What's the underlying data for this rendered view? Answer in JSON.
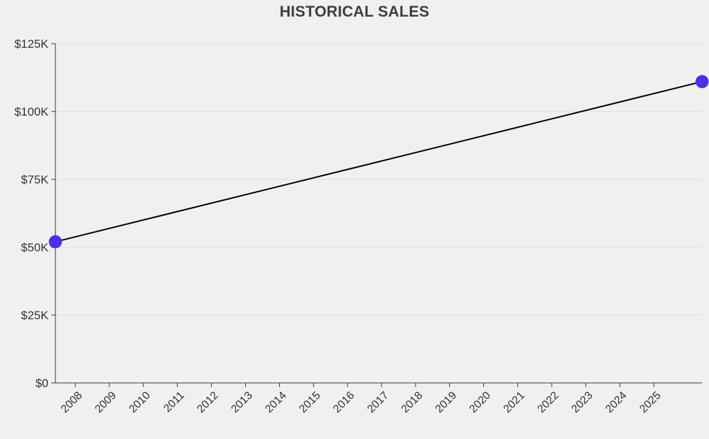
{
  "chart_data": {
    "type": "line",
    "title": "HISTORICAL SALES",
    "xlabel": "",
    "ylabel": "",
    "x_tick_labels": [
      "2008",
      "2009",
      "2010",
      "2011",
      "2012",
      "2013",
      "2014",
      "2015",
      "2016",
      "2017",
      "2018",
      "2019",
      "2020",
      "2021",
      "2022",
      "2023",
      "2024",
      "2025"
    ],
    "y_tick_labels": [
      "$0",
      "$25K",
      "$50K",
      "$75K",
      "$100K",
      "$125K"
    ],
    "y_ticks": [
      0,
      25000,
      50000,
      75000,
      100000,
      125000
    ],
    "ylim": [
      0,
      125000
    ],
    "xlim": [
      "2007-06",
      "2026-06"
    ],
    "grid": true,
    "legend": "none",
    "series": [
      {
        "x": [
          "2007-06",
          "2026-06"
        ],
        "y": [
          52000,
          111000
        ],
        "line_color": "#000000",
        "marker_color": "#4a32e0"
      }
    ]
  }
}
